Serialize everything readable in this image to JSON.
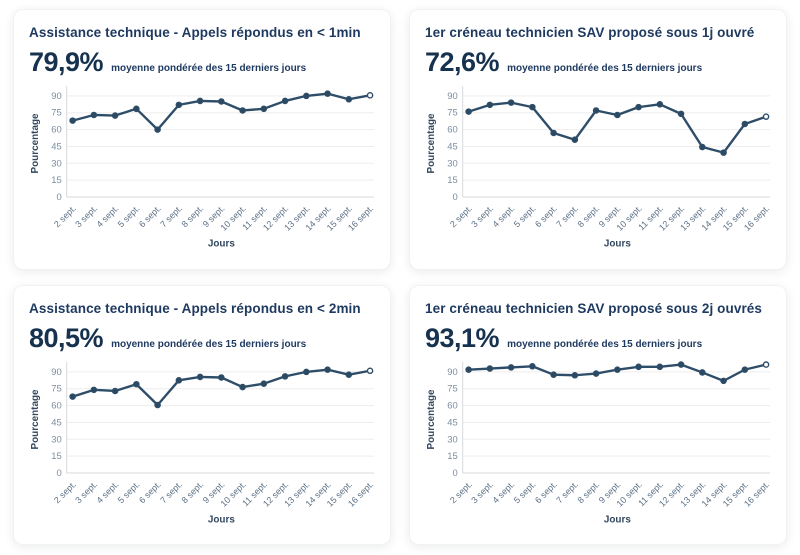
{
  "colors": {
    "line": "#2e4d68",
    "marker": "#2b4961",
    "marker_last_fill": "#ffffff",
    "grid": "#ededed",
    "axis_line": "#d6dade",
    "tick_text": "#7d8da0",
    "xtick_text": "#5d7186",
    "axis_title": "#33475e",
    "title_text": "#1f3a60",
    "kpi_text": "#16324f",
    "card_background": "#ffffff"
  },
  "chart_data": [
    {
      "type": "line",
      "title": "Assistance technique - Appels répondus en < 1min",
      "kpi": "79,9%",
      "subtitle": "moyenne pondérée des 15 derniers jours",
      "xlabel": "Jours",
      "ylabel": "Pourcentage",
      "ylim": [
        0,
        90
      ],
      "yticks": [
        0,
        15,
        30,
        45,
        60,
        75,
        90
      ],
      "grid": true,
      "x": [
        "2 sept.",
        "3 sept.",
        "4 sept.",
        "5 sept.",
        "6 sept.",
        "7 sept.",
        "8 sept.",
        "9 sept.",
        "10 sept.",
        "11 sept.",
        "12 sept.",
        "13 sept.",
        "14 sept.",
        "15 sept.",
        "16 sept."
      ],
      "values": [
        68,
        73,
        72.5,
        78.5,
        60,
        82,
        85.5,
        85,
        77,
        78.5,
        85.5,
        90,
        92,
        87,
        90.5
      ]
    },
    {
      "type": "line",
      "title": "1er créneau technicien SAV proposé sous 1j ouvré",
      "kpi": "72,6%",
      "subtitle": "moyenne pondérée des 15 derniers jours",
      "xlabel": "Jours",
      "ylabel": "Pourcentage",
      "ylim": [
        0,
        90
      ],
      "yticks": [
        0,
        15,
        30,
        45,
        60,
        75,
        90
      ],
      "grid": true,
      "x": [
        "2 sept.",
        "3 sept.",
        "4 sept.",
        "5 sept.",
        "6 sept.",
        "7 sept.",
        "8 sept.",
        "9 sept.",
        "10 sept.",
        "11 sept.",
        "12 sept.",
        "13 sept.",
        "14 sept.",
        "15 sept.",
        "16 sept."
      ],
      "values": [
        76,
        82,
        84,
        80,
        57,
        51,
        77,
        73,
        80,
        82.5,
        74,
        44.5,
        39.5,
        65,
        71.5
      ]
    },
    {
      "type": "line",
      "title": "Assistance technique - Appels répondus en < 2min",
      "kpi": "80,5%",
      "subtitle": "moyenne pondérée des 15 derniers jours",
      "xlabel": "Jours",
      "ylabel": "Pourcentage",
      "ylim": [
        0,
        90
      ],
      "yticks": [
        0,
        15,
        30,
        45,
        60,
        75,
        90
      ],
      "grid": true,
      "x": [
        "2 sept.",
        "3 sept.",
        "4 sept.",
        "5 sept.",
        "6 sept.",
        "7 sept.",
        "8 sept.",
        "9 sept.",
        "10 sept.",
        "11 sept.",
        "12 sept.",
        "13 sept.",
        "14 sept.",
        "15 sept.",
        "16 sept."
      ],
      "values": [
        68,
        74,
        73,
        79,
        60.5,
        82.5,
        85.5,
        85,
        76.5,
        79.5,
        86,
        90,
        92,
        87.5,
        91
      ]
    },
    {
      "type": "line",
      "title": "1er créneau technicien SAV proposé sous 2j ouvrés",
      "kpi": "93,1%",
      "subtitle": "moyenne pondérée des 15 derniers jours",
      "xlabel": "Jours",
      "ylabel": "Pourcentage",
      "ylim": [
        0,
        90
      ],
      "yticks": [
        0,
        15,
        30,
        45,
        60,
        75,
        90
      ],
      "grid": true,
      "x": [
        "2 sept.",
        "3 sept.",
        "4 sept.",
        "5 sept.",
        "6 sept.",
        "7 sept.",
        "8 sept.",
        "9 sept.",
        "10 sept.",
        "11 sept.",
        "12 sept.",
        "13 sept.",
        "14 sept.",
        "15 sept.",
        "16 sept."
      ],
      "values": [
        92,
        93,
        94,
        95,
        87.5,
        87,
        88.5,
        92,
        94.5,
        94.5,
        96.5,
        89.5,
        82,
        92,
        96.5
      ]
    }
  ]
}
